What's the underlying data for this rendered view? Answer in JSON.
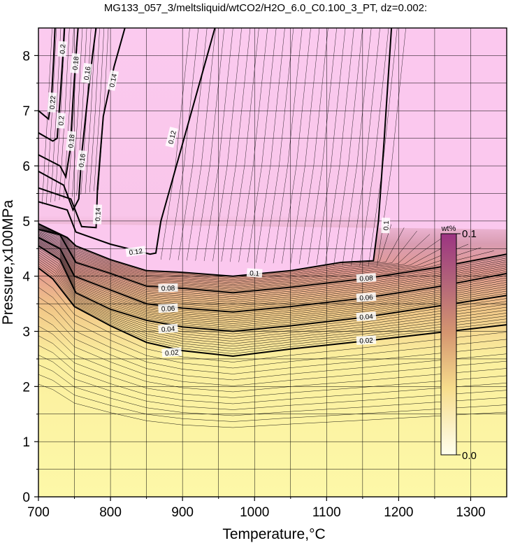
{
  "chart_data": {
    "type": "contour",
    "title": "MG133_057_3/meltsliquid/wtCO2/H2O_6.0_C0.100_3_PT, dz=0.002:",
    "xlabel": "Temperature,°C",
    "ylabel": "Pressure,x100MPa",
    "xlim": [
      700,
      1350
    ],
    "ylim": [
      0,
      8.5
    ],
    "xticks": [
      700,
      800,
      900,
      1000,
      1100,
      1200,
      1300
    ],
    "yticks": [
      0,
      1,
      2,
      3,
      4,
      5,
      6,
      7,
      8
    ],
    "xtick_labels": [
      "700",
      "800",
      "900",
      "1000",
      "1100",
      "1200",
      "1300"
    ],
    "ytick_labels": [
      "0",
      "1",
      "2",
      "3",
      "4",
      "5",
      "6",
      "7",
      "8"
    ],
    "grid": true,
    "contour_interval": 0.002,
    "colorbar": {
      "label": "wt%",
      "min": 0.0,
      "max": 0.1,
      "min_label": "0.0",
      "max_label": "0.1",
      "colors": [
        "#ffffee",
        "#f8e08c",
        "#d89670",
        "#b05870",
        "#a03c82"
      ]
    },
    "colors": {
      "low": "#fdf7a7",
      "mid": "#e4a5a0",
      "high": "#fbc8ee"
    },
    "contours": [
      {
        "level": 0.02,
        "label": "0.02",
        "points": [
          [
            700,
            4.15
          ],
          [
            720,
            3.95
          ],
          [
            750,
            3.45
          ],
          [
            800,
            3.1
          ],
          [
            850,
            2.8
          ],
          [
            900,
            2.65
          ],
          [
            970,
            2.55
          ],
          [
            1050,
            2.68
          ],
          [
            1150,
            2.82
          ],
          [
            1250,
            2.97
          ],
          [
            1350,
            3.12
          ]
        ]
      },
      {
        "level": 0.04,
        "label": "0.04",
        "points": [
          [
            700,
            4.55
          ],
          [
            730,
            4.3
          ],
          [
            752,
            3.7
          ],
          [
            800,
            3.4
          ],
          [
            850,
            3.2
          ],
          [
            900,
            3.08
          ],
          [
            970,
            3.0
          ],
          [
            1050,
            3.1
          ],
          [
            1150,
            3.25
          ],
          [
            1250,
            3.45
          ],
          [
            1350,
            3.65
          ]
        ]
      },
      {
        "level": 0.06,
        "label": "0.06",
        "points": [
          [
            700,
            4.7
          ],
          [
            730,
            4.5
          ],
          [
            750,
            4.0
          ],
          [
            800,
            3.75
          ],
          [
            850,
            3.5
          ],
          [
            900,
            3.42
          ],
          [
            970,
            3.35
          ],
          [
            1050,
            3.45
          ],
          [
            1150,
            3.6
          ],
          [
            1250,
            3.8
          ],
          [
            1350,
            4.05
          ]
        ]
      },
      {
        "level": 0.08,
        "label": "0.08",
        "points": [
          [
            700,
            4.85
          ],
          [
            730,
            4.75
          ],
          [
            752,
            4.25
          ],
          [
            800,
            4.05
          ],
          [
            850,
            3.82
          ],
          [
            900,
            3.78
          ],
          [
            970,
            3.7
          ],
          [
            1050,
            3.8
          ],
          [
            1150,
            3.95
          ],
          [
            1250,
            4.15
          ],
          [
            1350,
            4.4
          ]
        ]
      },
      {
        "level": 0.1,
        "label": "0.1",
        "points": [
          [
            700,
            4.95
          ],
          [
            740,
            4.7
          ],
          [
            752,
            4.55
          ],
          [
            800,
            4.3
          ],
          [
            850,
            4.1
          ],
          [
            900,
            4.07
          ],
          [
            970,
            4.0
          ],
          [
            1050,
            4.1
          ],
          [
            1120,
            4.25
          ],
          [
            1165,
            4.28
          ],
          [
            1172,
            5.0
          ],
          [
            1180,
            6.5
          ],
          [
            1190,
            8.5
          ]
        ]
      },
      {
        "level": 0.12,
        "label": "0.12",
        "points": [
          [
            700,
            5.35
          ],
          [
            740,
            5.2
          ],
          [
            752,
            4.8
          ],
          [
            800,
            4.58
          ],
          [
            855,
            4.4
          ],
          [
            863,
            4.42
          ],
          [
            870,
            5.0
          ],
          [
            900,
            6.4
          ],
          [
            930,
            7.8
          ],
          [
            945,
            8.5
          ]
        ]
      },
      {
        "level": 0.14,
        "label": "0.14",
        "points": [
          [
            700,
            5.6
          ],
          [
            745,
            5.4
          ],
          [
            760,
            4.9
          ],
          [
            780,
            4.88
          ],
          [
            782,
            5.6
          ],
          [
            790,
            6.9
          ],
          [
            805,
            7.8
          ],
          [
            820,
            8.5
          ]
        ]
      },
      {
        "level": 0.16,
        "label": "0.16",
        "points": [
          [
            700,
            5.9
          ],
          [
            735,
            5.65
          ],
          [
            748,
            5.2
          ],
          [
            756,
            5.4
          ],
          [
            760,
            6.2
          ],
          [
            768,
            7.2
          ],
          [
            775,
            8.0
          ],
          [
            780,
            8.5
          ]
        ]
      },
      {
        "level": 0.18,
        "label": "0.18",
        "points": [
          [
            700,
            6.2
          ],
          [
            730,
            6.0
          ],
          [
            738,
            5.8
          ],
          [
            744,
            6.3
          ],
          [
            748,
            7.2
          ],
          [
            752,
            8.0
          ],
          [
            755,
            8.5
          ]
        ]
      },
      {
        "level": 0.2,
        "label": "0.2",
        "points": [
          [
            700,
            6.6
          ],
          [
            720,
            6.45
          ],
          [
            726,
            6.5
          ],
          [
            730,
            7.2
          ],
          [
            734,
            8.0
          ],
          [
            736,
            8.5
          ]
        ]
      },
      {
        "level": 0.22,
        "label": "0.22",
        "points": [
          [
            700,
            7.0
          ],
          [
            714,
            6.85
          ],
          [
            718,
            7.2
          ],
          [
            721,
            7.9
          ],
          [
            723,
            8.5
          ]
        ]
      }
    ],
    "contour_labels": [
      {
        "text": "0.02",
        "x": 885,
        "y": 2.62,
        "angle": -5
      },
      {
        "text": "0.04",
        "x": 880,
        "y": 3.05,
        "angle": -4
      },
      {
        "text": "0.06",
        "x": 880,
        "y": 3.42,
        "angle": -3
      },
      {
        "text": "0.08",
        "x": 880,
        "y": 3.79,
        "angle": -2
      },
      {
        "text": "0.1",
        "x": 1000,
        "y": 4.06,
        "angle": 4
      },
      {
        "text": "0.12",
        "x": 835,
        "y": 4.45,
        "angle": -8
      },
      {
        "text": "0.02",
        "x": 1155,
        "y": 2.84,
        "angle": -3
      },
      {
        "text": "0.04",
        "x": 1155,
        "y": 3.27,
        "angle": -4
      },
      {
        "text": "0.06",
        "x": 1155,
        "y": 3.62,
        "angle": -4
      },
      {
        "text": "0.08",
        "x": 1155,
        "y": 3.97,
        "angle": -4
      },
      {
        "text": "0.1",
        "x": 1182,
        "y": 4.92,
        "angle": -88
      },
      {
        "text": "0.12",
        "x": 885,
        "y": 6.52,
        "angle": -76
      },
      {
        "text": "0.14",
        "x": 782,
        "y": 5.12,
        "angle": -88
      },
      {
        "text": "0.14",
        "x": 803,
        "y": 7.55,
        "angle": -78
      },
      {
        "text": "0.16",
        "x": 760,
        "y": 6.1,
        "angle": -82
      },
      {
        "text": "0.16",
        "x": 767,
        "y": 7.68,
        "angle": -82
      },
      {
        "text": "0.18",
        "x": 745,
        "y": 6.45,
        "angle": -84
      },
      {
        "text": "0.18",
        "x": 751,
        "y": 7.86,
        "angle": -84
      },
      {
        "text": "0.2",
        "x": 731,
        "y": 6.82,
        "angle": -86
      },
      {
        "text": "0.2",
        "x": 733,
        "y": 8.12,
        "angle": -86
      },
      {
        "text": "0.22",
        "x": 719,
        "y": 7.15,
        "angle": -86
      }
    ]
  }
}
